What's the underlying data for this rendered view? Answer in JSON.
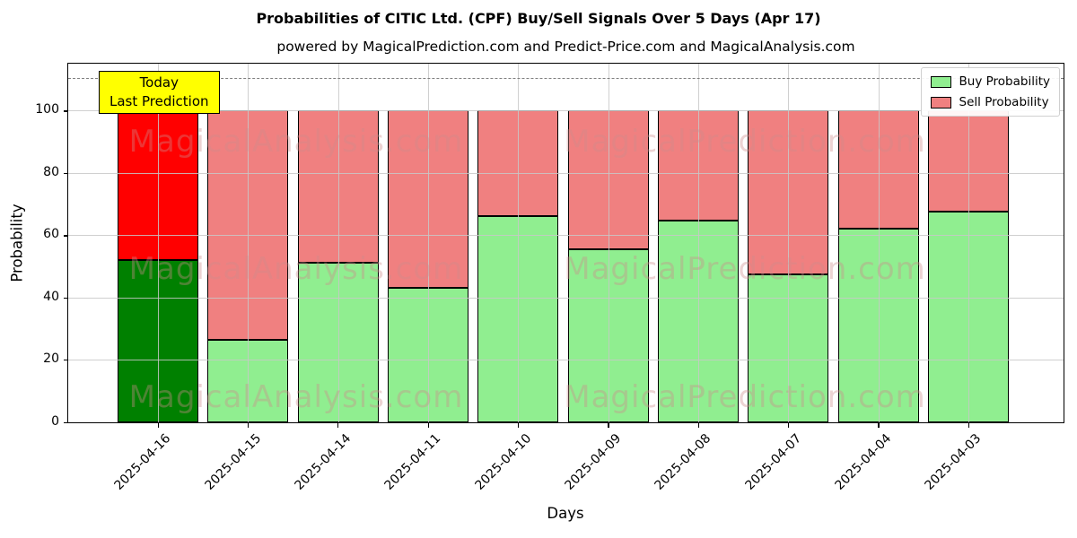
{
  "chart_data": {
    "type": "bar",
    "stacked": true,
    "title": "Probabilities of CITIC Ltd. (CPF) Buy/Sell Signals Over 5 Days (Apr 17)",
    "subtitle": "powered by MagicalPrediction.com and Predict-Price.com and MagicalAnalysis.com",
    "xlabel": "Days",
    "ylabel": "Probability",
    "categories": [
      "2025-04-16",
      "2025-04-15",
      "2025-04-14",
      "2025-04-11",
      "2025-04-10",
      "2025-04-09",
      "2025-04-08",
      "2025-04-07",
      "2025-04-04",
      "2025-04-03"
    ],
    "series": [
      {
        "name": "Buy Probability",
        "values": [
          52,
          26.5,
          51,
          43,
          66,
          55.5,
          64.5,
          47.5,
          62,
          67.5
        ],
        "color": "#90ee90",
        "today_color": "#008000"
      },
      {
        "name": "Sell Probability",
        "values": [
          48,
          73.5,
          49,
          57,
          34,
          44.5,
          35.5,
          52.5,
          38,
          32.5
        ],
        "color": "#f08080",
        "today_color": "#ff0000"
      }
    ],
    "yticks": [
      0,
      20,
      40,
      60,
      80,
      100
    ],
    "ylim": [
      0,
      115
    ],
    "grid": true,
    "dashed_line_y": 110,
    "legend_position": "upper right",
    "annotation": {
      "lines": [
        "Today",
        "Last Prediction"
      ],
      "bg_color": "#ffff00"
    },
    "watermarks": [
      "MagicalAnalysis.com",
      "MagicalPrediction.com"
    ],
    "colors": {
      "today_buy": "#008000",
      "today_sell": "#ff0000",
      "buy": "#90ee90",
      "sell": "#f08080",
      "grid": "#c8c8c8",
      "dashed_line": "#808080",
      "annotation_bg": "#ffff00",
      "bar_edge": "#000000"
    }
  }
}
